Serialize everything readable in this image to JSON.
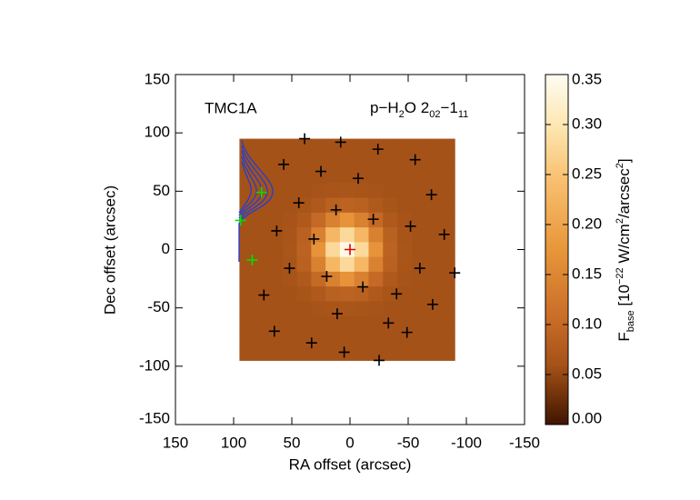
{
  "chart_data": {
    "type": "heatmap",
    "source_label": "TMC1A",
    "line_label": [
      {
        "text": "p−H"
      },
      {
        "text": "2",
        "shift": "sub"
      },
      {
        "text": "O 2"
      },
      {
        "text": "02",
        "shift": "sub"
      },
      {
        "text": "−1"
      },
      {
        "text": "11",
        "shift": "sub"
      }
    ],
    "x_label": "RA offset (arcsec)",
    "y_label": "Dec offset (arcsec)",
    "xlim": [
      150,
      -150
    ],
    "ylim": [
      -150,
      150
    ],
    "xticks": [
      150,
      100,
      50,
      0,
      -50,
      -100,
      -150
    ],
    "yticks": [
      150,
      100,
      50,
      0,
      -50,
      -100,
      -150
    ],
    "image": {
      "xlim": [
        95,
        -90
      ],
      "ylim": [
        95,
        -95
      ],
      "values": [
        [
          0.06,
          0.06,
          0.06,
          0.06,
          0.06,
          0.06,
          0.06,
          0.06,
          0.06,
          0.06,
          0.06,
          0.06,
          0.06,
          0.06,
          0.06
        ],
        [
          0.06,
          0.06,
          0.06,
          0.06,
          0.06,
          0.06,
          0.06,
          0.06,
          0.06,
          0.06,
          0.06,
          0.06,
          0.06,
          0.06,
          0.06
        ],
        [
          0.06,
          0.06,
          0.06,
          0.06,
          0.06,
          0.06,
          0.06,
          0.06,
          0.06,
          0.06,
          0.06,
          0.06,
          0.06,
          0.06,
          0.06
        ],
        [
          0.06,
          0.06,
          0.06,
          0.06,
          0.06,
          0.062,
          0.065,
          0.066,
          0.065,
          0.062,
          0.06,
          0.06,
          0.06,
          0.06,
          0.06
        ],
        [
          0.06,
          0.06,
          0.06,
          0.06,
          0.064,
          0.072,
          0.085,
          0.09,
          0.085,
          0.072,
          0.064,
          0.06,
          0.06,
          0.06,
          0.06
        ],
        [
          0.06,
          0.06,
          0.06,
          0.062,
          0.072,
          0.1,
          0.14,
          0.17,
          0.14,
          0.1,
          0.072,
          0.062,
          0.06,
          0.06,
          0.06
        ],
        [
          0.06,
          0.06,
          0.06,
          0.065,
          0.085,
          0.14,
          0.23,
          0.28,
          0.23,
          0.14,
          0.085,
          0.065,
          0.06,
          0.06,
          0.06
        ],
        [
          0.06,
          0.06,
          0.06,
          0.066,
          0.09,
          0.17,
          0.28,
          0.34,
          0.28,
          0.17,
          0.09,
          0.066,
          0.06,
          0.06,
          0.06
        ],
        [
          0.06,
          0.06,
          0.06,
          0.065,
          0.085,
          0.14,
          0.23,
          0.28,
          0.23,
          0.14,
          0.085,
          0.065,
          0.06,
          0.06,
          0.06
        ],
        [
          0.06,
          0.06,
          0.06,
          0.062,
          0.072,
          0.1,
          0.14,
          0.17,
          0.14,
          0.1,
          0.072,
          0.062,
          0.06,
          0.06,
          0.06
        ],
        [
          0.06,
          0.06,
          0.06,
          0.06,
          0.064,
          0.072,
          0.085,
          0.09,
          0.085,
          0.072,
          0.064,
          0.06,
          0.06,
          0.06,
          0.06
        ],
        [
          0.06,
          0.06,
          0.06,
          0.06,
          0.06,
          0.062,
          0.065,
          0.066,
          0.065,
          0.062,
          0.06,
          0.06,
          0.06,
          0.06,
          0.06
        ],
        [
          0.06,
          0.06,
          0.06,
          0.06,
          0.06,
          0.06,
          0.06,
          0.06,
          0.06,
          0.06,
          0.06,
          0.06,
          0.06,
          0.06,
          0.06
        ],
        [
          0.06,
          0.06,
          0.06,
          0.06,
          0.06,
          0.06,
          0.06,
          0.06,
          0.06,
          0.06,
          0.06,
          0.06,
          0.06,
          0.06,
          0.06
        ],
        [
          0.06,
          0.06,
          0.06,
          0.06,
          0.06,
          0.06,
          0.06,
          0.06,
          0.06,
          0.06,
          0.06,
          0.06,
          0.06,
          0.06,
          0.06
        ]
      ]
    },
    "series": [
      {
        "color": "#000000",
        "x": [
          39,
          8,
          -24,
          -56,
          57,
          25,
          -7,
          -70,
          44,
          12,
          -20,
          -52,
          -81,
          63,
          31,
          52,
          20,
          -11,
          -40,
          -71,
          -90,
          74,
          -60,
          -33,
          65,
          33,
          -49,
          11,
          5,
          -25
        ],
        "y": [
          95,
          92,
          86,
          77,
          73,
          67,
          61,
          47,
          40,
          34,
          26,
          20,
          13,
          16,
          9,
          -16,
          -23,
          -32,
          -38,
          -47,
          -20,
          -39,
          -16,
          -63,
          -70,
          -80,
          -71,
          -55,
          -88,
          -95
        ]
      },
      {
        "color": "#e00000",
        "x": [
          0
        ],
        "y": [
          0
        ]
      },
      {
        "color": "#00e000",
        "x": [
          84,
          94,
          76
        ],
        "y": [
          -9,
          25,
          49
        ]
      }
    ],
    "colorbar": {
      "clim": [
        0,
        0.35
      ],
      "ticks": [
        {
          "value": 0,
          "label": "0.00"
        },
        0.05,
        {
          "value": 0.1,
          "label": "0.10"
        },
        0.15,
        {
          "value": 0.2,
          "label": "0.20"
        },
        0.25,
        {
          "value": 0.3,
          "label": "0.30"
        },
        0.35
      ],
      "label": [
        {
          "text": "F"
        },
        {
          "text": "base",
          "shift": "sub"
        },
        {
          "text": " [10"
        },
        {
          "text": "−22",
          "shift": "super"
        },
        {
          "text": " W/cm"
        },
        {
          "text": "2",
          "shift": "super"
        },
        {
          "text": "/arcsec"
        },
        {
          "text": "2",
          "shift": "super"
        },
        {
          "text": "]"
        }
      ]
    }
  }
}
